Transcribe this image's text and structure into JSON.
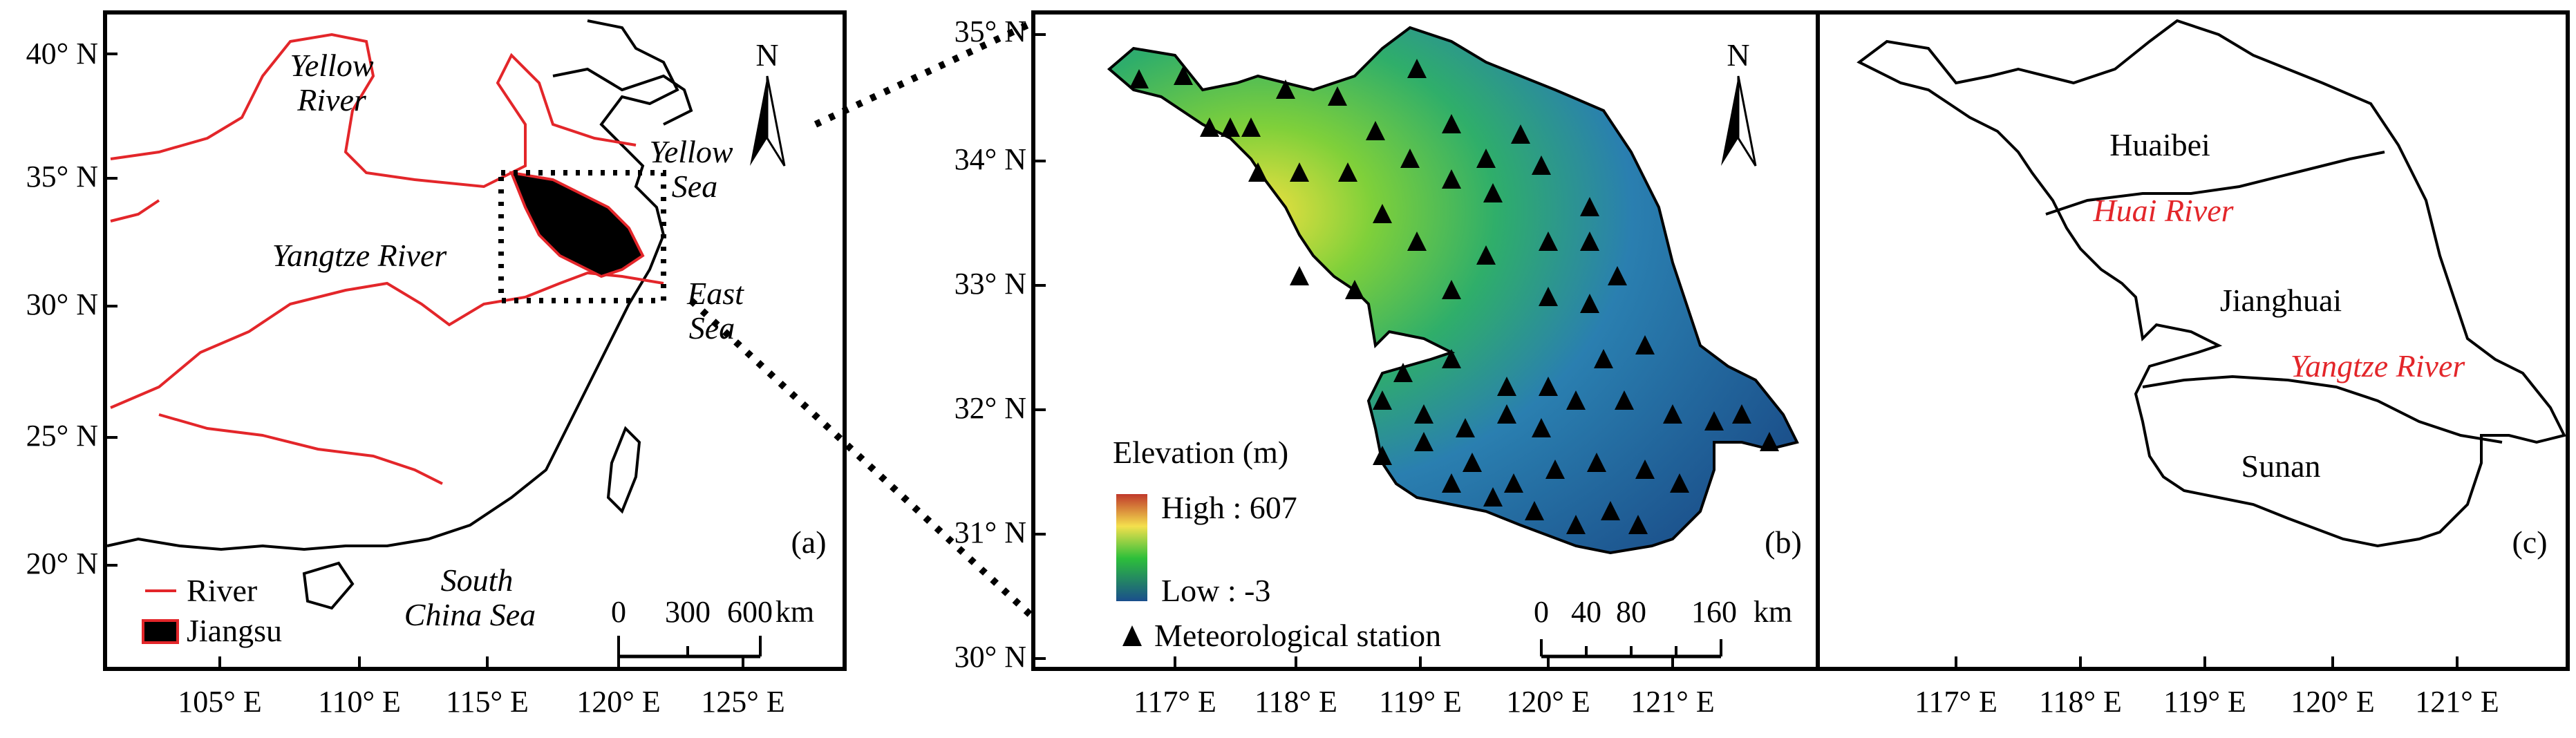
{
  "panel_a": {
    "label": "(a)",
    "lat_ticks": [
      "40° N",
      "35° N",
      "30° N",
      "25° N",
      "20° N"
    ],
    "lon_ticks": [
      "105° E",
      "110° E",
      "115° E",
      "120° E",
      "125° E"
    ],
    "place_labels": {
      "yellow_river_1": "Yellow",
      "yellow_river_2": "River",
      "yangtze_river": "Yangtze River",
      "yellow_sea_1": "Yellow",
      "yellow_sea_2": "Sea",
      "east_sea_1": "East",
      "east_sea_2": "Sea",
      "south_china_sea_1": "South",
      "south_china_sea_2": "China Sea"
    },
    "north_label": "N",
    "legend": {
      "river": "River",
      "jiangsu": "Jiangsu"
    },
    "scale": {
      "t0": "0",
      "t1": "300",
      "t2": "600",
      "unit": "km"
    },
    "colors": {
      "river": "#e3262a",
      "jiangsu": "#000000"
    }
  },
  "panel_b": {
    "label": "(b)",
    "lat_ticks": [
      "35° N",
      "34° N",
      "33° N",
      "32° N",
      "31° N",
      "30° N"
    ],
    "lon_ticks": [
      "117° E",
      "118° E",
      "119° E",
      "120° E",
      "121° E"
    ],
    "north_label": "N",
    "legend": {
      "title": "Elevation (m)",
      "high": "High : 607",
      "low": "Low : -3",
      "station": "Meteorological station"
    },
    "scale": {
      "t0": "0",
      "t1": "40",
      "t2": "80",
      "t3": "160",
      "unit": "km"
    },
    "colors": {
      "high": "#c0392b",
      "mid": "#f4e04d",
      "green": "#2dbf3a",
      "low": "#1a4e8c"
    }
  },
  "panel_c": {
    "label": "(c)",
    "lon_ticks": [
      "117° E",
      "118° E",
      "119° E",
      "120° E",
      "121° E"
    ],
    "regions": {
      "huaibei": "Huaibei",
      "jianghuai": "Jianghuai",
      "sunan": "Sunan"
    },
    "rivers": {
      "huai": "Huai River",
      "yangtze": "Yangtze River"
    }
  }
}
